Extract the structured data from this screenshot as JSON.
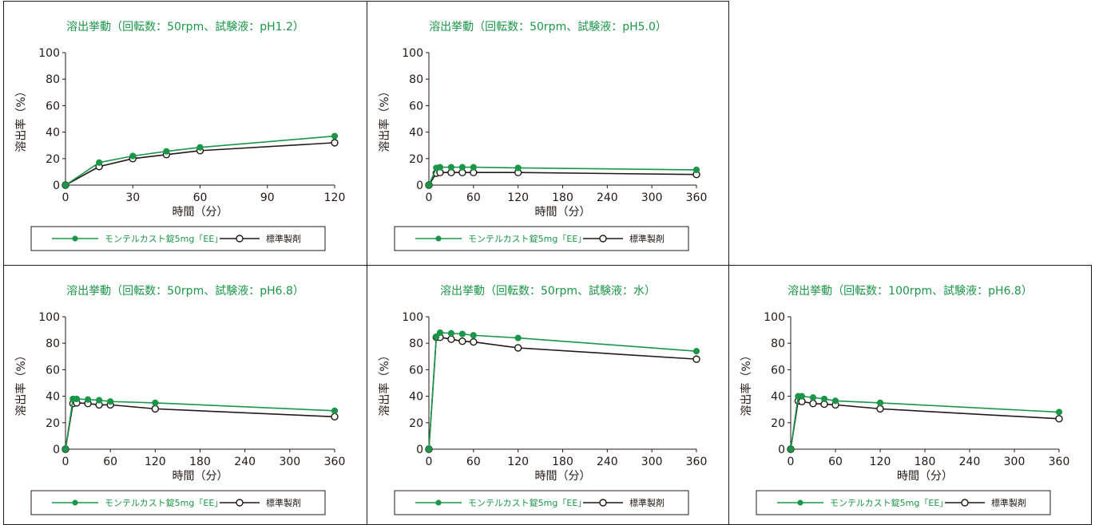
{
  "legend": {
    "test": "モンテルカスト錠5mg「EE」",
    "ref": "標準製剤"
  },
  "colors": {
    "test": "#1a9648",
    "ref": "#231815"
  },
  "chart_data": [
    {
      "type": "line",
      "title": "溶出挙動（回転数：50rpm、試験液：pH1.2）",
      "xlabel": "時間（分）",
      "ylabel": "溶出率（%）",
      "xlim": [
        0,
        120
      ],
      "ylim": [
        0,
        100
      ],
      "xticks": [
        0,
        30,
        60,
        90,
        120
      ],
      "yticks": [
        0,
        20,
        40,
        60,
        80,
        100
      ],
      "series": [
        {
          "name": "モンテルカスト錠5mg「EE」",
          "x": [
            0,
            15,
            30,
            45,
            60,
            120
          ],
          "y": [
            0,
            17,
            22,
            25.5,
            28.5,
            37
          ]
        },
        {
          "name": "標準製剤",
          "x": [
            0,
            15,
            30,
            45,
            60,
            120
          ],
          "y": [
            0,
            14,
            20,
            23,
            26,
            32
          ]
        }
      ]
    },
    {
      "type": "line",
      "title": "溶出挙動（回転数：50rpm、試験液：pH5.0）",
      "xlabel": "時間（分）",
      "ylabel": "溶出率（%）",
      "xlim": [
        0,
        360
      ],
      "ylim": [
        0,
        100
      ],
      "xticks": [
        0,
        60,
        120,
        180,
        240,
        300,
        360
      ],
      "yticks": [
        0,
        20,
        40,
        60,
        80,
        100
      ],
      "series": [
        {
          "name": "モンテルカスト錠5mg「EE」",
          "x": [
            0,
            10,
            15,
            30,
            45,
            60,
            120,
            360
          ],
          "y": [
            0,
            13,
            13.5,
            13.5,
            13.5,
            13.5,
            13,
            11.5
          ]
        },
        {
          "name": "標準製剤",
          "x": [
            0,
            10,
            15,
            30,
            45,
            60,
            120,
            360
          ],
          "y": [
            0,
            9,
            9.5,
            9.5,
            9.5,
            9.5,
            9.5,
            8
          ]
        }
      ]
    },
    {
      "type": "line",
      "title": "溶出挙動（回転数：50rpm、試験液：pH6.8）",
      "xlabel": "時間（分）",
      "ylabel": "溶出率（%）",
      "xlim": [
        0,
        360
      ],
      "ylim": [
        0,
        100
      ],
      "xticks": [
        0,
        60,
        120,
        180,
        240,
        300,
        360
      ],
      "yticks": [
        0,
        20,
        40,
        60,
        80,
        100
      ],
      "series": [
        {
          "name": "モンテルカスト錠5mg「EE」",
          "x": [
            0,
            10,
            15,
            30,
            45,
            60,
            120,
            360
          ],
          "y": [
            0,
            38,
            38,
            37.5,
            37,
            36,
            35,
            29
          ]
        },
        {
          "name": "標準製剤",
          "x": [
            0,
            10,
            15,
            30,
            45,
            60,
            120,
            360
          ],
          "y": [
            0,
            34.5,
            35,
            34.5,
            33.5,
            33.5,
            30.5,
            24.5
          ]
        }
      ]
    },
    {
      "type": "line",
      "title": "溶出挙動（回転数：50rpm、試験液：水）",
      "xlabel": "時間（分）",
      "ylabel": "溶出率（%）",
      "xlim": [
        0,
        360
      ],
      "ylim": [
        0,
        100
      ],
      "xticks": [
        0,
        60,
        120,
        180,
        240,
        300,
        360
      ],
      "yticks": [
        0,
        20,
        40,
        60,
        80,
        100
      ],
      "series": [
        {
          "name": "モンテルカスト錠5mg「EE」",
          "x": [
            0,
            10,
            15,
            30,
            45,
            60,
            120,
            360
          ],
          "y": [
            0,
            85,
            88,
            87.5,
            87,
            86,
            84,
            74
          ]
        },
        {
          "name": "標準製剤",
          "x": [
            0,
            10,
            15,
            30,
            45,
            60,
            120,
            360
          ],
          "y": [
            0,
            84.5,
            84.5,
            83,
            81.5,
            81,
            76.5,
            68
          ]
        }
      ]
    },
    {
      "type": "line",
      "title": "溶出挙動（回転数：100rpm、試験液：pH6.8）",
      "xlabel": "時間（分）",
      "ylabel": "溶出率（%）",
      "xlim": [
        0,
        360
      ],
      "ylim": [
        0,
        100
      ],
      "xticks": [
        0,
        60,
        120,
        180,
        240,
        300,
        360
      ],
      "yticks": [
        0,
        20,
        40,
        60,
        80,
        100
      ],
      "series": [
        {
          "name": "モンテルカスト錠5mg「EE」",
          "x": [
            0,
            10,
            15,
            30,
            45,
            60,
            120,
            360
          ],
          "y": [
            0,
            40,
            40,
            39,
            38,
            36.5,
            35,
            28
          ]
        },
        {
          "name": "標準製剤",
          "x": [
            0,
            10,
            15,
            30,
            45,
            60,
            120,
            360
          ],
          "y": [
            0,
            36.5,
            36,
            34.5,
            34,
            33.5,
            30.5,
            23
          ]
        }
      ]
    }
  ]
}
